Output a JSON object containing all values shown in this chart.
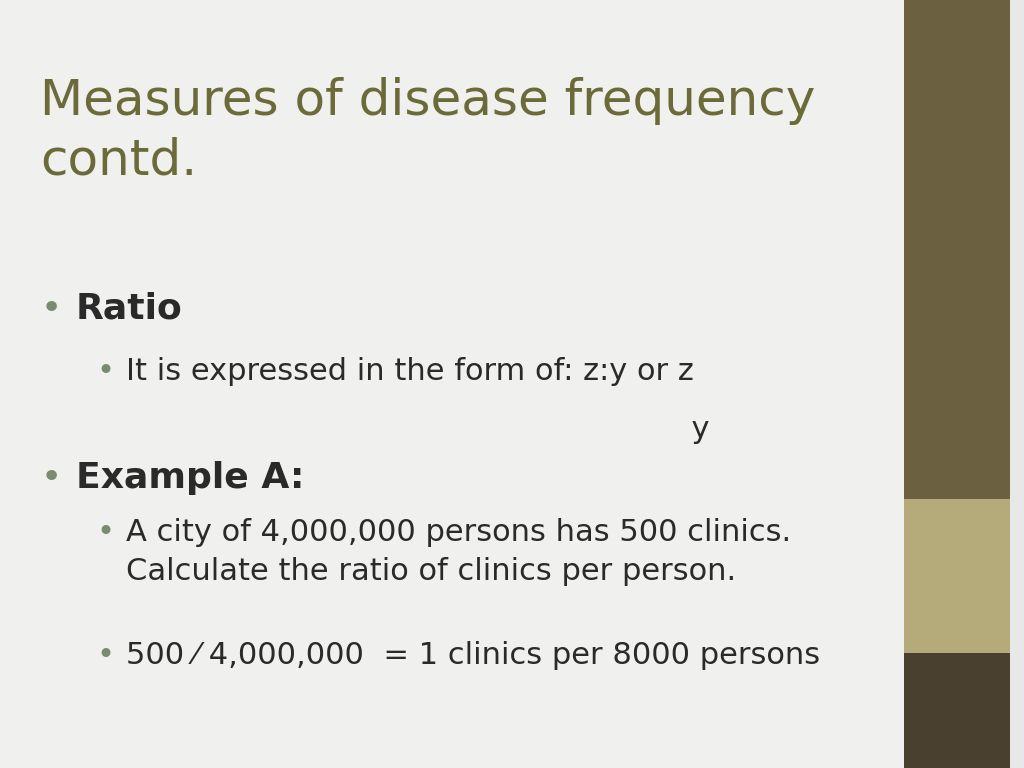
{
  "title": "Measures of disease frequency\ncontd.",
  "title_color": "#6B6B3A",
  "background_color": "#E8E8E8",
  "content_background": "#F5F5F2",
  "sidebar_top_color": "#6B6040",
  "sidebar_mid_color": "#B5AA7A",
  "sidebar_bottom_color": "#4A4030",
  "bullet_color": "#7A8C6E",
  "text_color": "#2A2A2A",
  "bullet1": "Ratio",
  "bullet1_sub1": "It is expressed in the form of: z:y or z",
  "bullet1_sub1_cont": "                                                          y",
  "bullet2": "Example A:",
  "bullet2_sub1_line1": "A city of 4,000,000 persons has 500 clinics.",
  "bullet2_sub1_line2": "Calculate the ratio of clinics per person.",
  "bullet2_sub2": "500 ⁄ 4,000,000  = 1 clinics per 8000 persons",
  "title_fontsize": 36,
  "bullet_fontsize": 26,
  "sub_bullet_fontsize": 22
}
